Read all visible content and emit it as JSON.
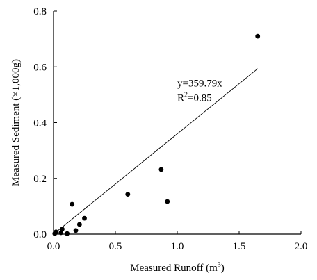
{
  "chart_data": {
    "type": "scatter",
    "xlabel": "Measured Runoff (m",
    "xlabel_sup": "3",
    "xlabel_end": ")",
    "ylabel": "Measured Sediment (×1,000g)",
    "xlim": [
      0,
      2
    ],
    "ylim": [
      0,
      0.8
    ],
    "x_ticks": [
      0,
      0.5,
      1,
      1.5,
      2
    ],
    "x_tick_labels": [
      "0.0",
      "0.5",
      "1.0",
      "1.5",
      "2.0"
    ],
    "y_ticks": [
      0,
      0.2,
      0.4,
      0.6,
      0.8
    ],
    "y_tick_labels": [
      "0.0",
      "0.2",
      "0.4",
      "0.6",
      "0.8"
    ],
    "grid": false,
    "legend": "none",
    "points": [
      {
        "x": 0.01,
        "y": 0.002
      },
      {
        "x": 0.02,
        "y": 0.008
      },
      {
        "x": 0.06,
        "y": 0.005
      },
      {
        "x": 0.07,
        "y": 0.018
      },
      {
        "x": 0.11,
        "y": 0.002
      },
      {
        "x": 0.15,
        "y": 0.107
      },
      {
        "x": 0.18,
        "y": 0.013
      },
      {
        "x": 0.21,
        "y": 0.035
      },
      {
        "x": 0.25,
        "y": 0.057
      },
      {
        "x": 0.6,
        "y": 0.143
      },
      {
        "x": 0.87,
        "y": 0.232
      },
      {
        "x": 0.92,
        "y": 0.117
      },
      {
        "x": 1.65,
        "y": 0.71
      }
    ],
    "fit": {
      "slope": 0.35979,
      "intercept": 0,
      "x_range": [
        0,
        1.65
      ]
    },
    "annotation_line1": "y=359.79x",
    "annotation_line2_pre": "R",
    "annotation_line2_sup": "2",
    "annotation_line2_post": "=0.85",
    "annotation_pos": {
      "x": 1.0,
      "y": 0.52
    }
  },
  "colors": {
    "marker": "#000000",
    "line": "#000000",
    "background": "#ffffff"
  }
}
